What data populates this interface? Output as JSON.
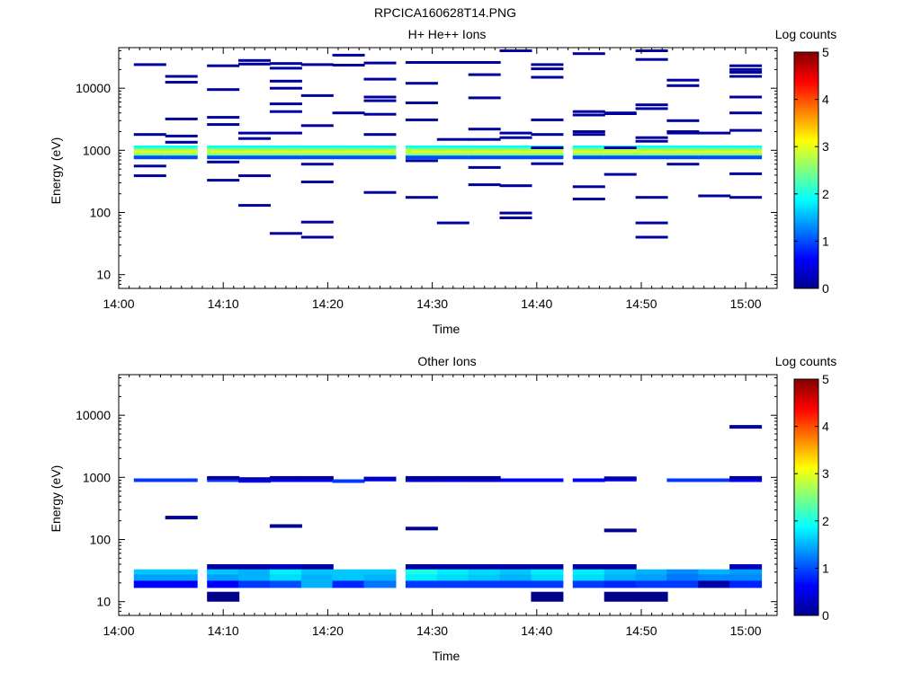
{
  "figure_title": "RPCICA160628T14.PNG",
  "colorbar": {
    "label": "Log counts",
    "min": 0,
    "max": 5,
    "ticks": [
      "0",
      "1",
      "2",
      "3",
      "4",
      "5"
    ]
  },
  "chart_data": [
    {
      "type": "heatmap",
      "title": "H+ He++ Ions",
      "xlabel": "Time",
      "ylabel": "Energy (eV)",
      "y_scale": "log",
      "xlim": [
        "14:00",
        "15:03"
      ],
      "ylim": [
        6,
        45000
      ],
      "x_ticks": [
        "14:00",
        "14:10",
        "14:20",
        "14:30",
        "14:40",
        "14:50",
        "15:00"
      ],
      "y_ticks": [
        "10",
        "100",
        "1000",
        "10000"
      ],
      "grid": false,
      "time_bins": [
        "14:03",
        "14:06",
        "14:10",
        "14:13",
        "14:16",
        "14:19",
        "14:22",
        "14:25",
        "14:29",
        "14:32",
        "14:35",
        "14:38",
        "14:41",
        "14:45",
        "14:48",
        "14:51",
        "14:54",
        "14:57",
        "15:00"
      ],
      "band": {
        "energies": [
          1120,
          1040,
          980,
          920,
          870,
          820,
          770
        ],
        "values": [
          1.9,
          2.3,
          2.7,
          3.0,
          2.8,
          2.4,
          1.0
        ]
      },
      "sparse": [
        [
          0,
          [
            24000,
            1800,
            560,
            390
          ]
        ],
        [
          1,
          [
            15500,
            12500,
            3200,
            1700,
            1350
          ]
        ],
        [
          2,
          [
            23000,
            9500,
            3400,
            2600,
            650,
            330
          ]
        ],
        [
          3,
          [
            28000,
            24500,
            1900,
            1550,
            390,
            130
          ]
        ],
        [
          4,
          [
            25000,
            21000,
            13000,
            10000,
            5600,
            4200,
            1900,
            46
          ]
        ],
        [
          5,
          [
            24000,
            7600,
            2500,
            600,
            310,
            70,
            40
          ]
        ],
        [
          6,
          [
            34000,
            23500,
            4000
          ]
        ],
        [
          7,
          [
            25500,
            14000,
            7200,
            6300,
            3800,
            1800,
            210
          ]
        ],
        [
          8,
          [
            26000,
            12000,
            5800,
            3100,
            680,
            175
          ]
        ],
        [
          9,
          [
            26000,
            1500,
            68
          ]
        ],
        [
          10,
          [
            26000,
            16500,
            7000,
            2200,
            1500,
            530,
            280
          ]
        ],
        [
          11,
          [
            40000,
            1900,
            1600,
            270,
            98,
            82
          ]
        ],
        [
          12,
          [
            24000,
            20500,
            15000,
            3100,
            1800,
            1100,
            610
          ]
        ],
        [
          13,
          [
            36000,
            4200,
            3700,
            2000,
            1800,
            260,
            165
          ]
        ],
        [
          14,
          [
            4000,
            3900,
            1100,
            410
          ]
        ],
        [
          15,
          [
            40000,
            29000,
            5400,
            4700,
            1600,
            1400,
            175,
            68,
            40
          ]
        ],
        [
          16,
          [
            13500,
            11000,
            3000,
            2000,
            1900,
            600
          ]
        ],
        [
          17,
          [
            1900,
            185
          ]
        ],
        [
          18,
          [
            23000,
            20000,
            18000,
            15500,
            7200,
            4000,
            2100,
            420,
            175
          ]
        ]
      ]
    },
    {
      "type": "heatmap",
      "title": "Other Ions",
      "xlabel": "Time",
      "ylabel": "Energy (eV)",
      "y_scale": "log",
      "xlim": [
        "14:00",
        "15:03"
      ],
      "ylim": [
        6,
        45000
      ],
      "x_ticks": [
        "14:00",
        "14:10",
        "14:20",
        "14:30",
        "14:40",
        "14:50",
        "15:00"
      ],
      "y_ticks": [
        "10",
        "100",
        "1000",
        "10000"
      ],
      "grid": false,
      "time_bins": [
        "14:03",
        "14:06",
        "14:10",
        "14:13",
        "14:16",
        "14:19",
        "14:22",
        "14:25",
        "14:29",
        "14:32",
        "14:35",
        "14:38",
        "14:41",
        "14:45",
        "14:48",
        "14:51",
        "14:54",
        "14:57",
        "15:00"
      ],
      "low_band": {
        "energies": [
          35,
          29,
          24,
          19
        ],
        "rows": [
          [
            null,
            null,
            0.2,
            0.2,
            0.3,
            0.2,
            null,
            null,
            0.2,
            0.2,
            0.2,
            0.2,
            0.2,
            0.2,
            0.2,
            null,
            null,
            null,
            0.3
          ],
          [
            1.6,
            1.6,
            1.6,
            1.5,
            1.8,
            1.6,
            1.6,
            1.6,
            2.0,
            1.8,
            1.7,
            1.6,
            1.8,
            1.8,
            1.6,
            1.5,
            1.3,
            1.5,
            1.4
          ],
          [
            1.4,
            1.4,
            1.4,
            1.5,
            1.7,
            1.5,
            1.6,
            1.5,
            1.8,
            1.7,
            1.6,
            1.5,
            1.7,
            1.7,
            1.5,
            1.4,
            1.2,
            1.3,
            1.3
          ],
          [
            0.6,
            0.6,
            0.6,
            0.9,
            1.0,
            1.5,
            0.8,
            1.2,
            0.9,
            0.9,
            0.9,
            0.9,
            0.9,
            0.9,
            0.8,
            0.9,
            0.9,
            0.2,
            0.8
          ]
        ]
      },
      "cells": [
        [
          2,
          12,
          0.05
        ],
        [
          12,
          12,
          0.05
        ],
        [
          14,
          12,
          0.05
        ],
        [
          15,
          12,
          0.05
        ],
        [
          0,
          900,
          0.9
        ],
        [
          1,
          900,
          0.9
        ],
        [
          2,
          900,
          0.9
        ],
        [
          3,
          880,
          0.7
        ],
        [
          4,
          900,
          0.6
        ],
        [
          5,
          900,
          0.6
        ],
        [
          6,
          870,
          0.9
        ],
        [
          7,
          920,
          0.7
        ],
        [
          8,
          900,
          0.4
        ],
        [
          9,
          900,
          0.5
        ],
        [
          10,
          900,
          0.4
        ],
        [
          11,
          900,
          0.6
        ],
        [
          12,
          900,
          0.6
        ],
        [
          13,
          900,
          0.6
        ],
        [
          14,
          920,
          0.6
        ],
        [
          16,
          900,
          0.9
        ],
        [
          17,
          900,
          0.9
        ],
        [
          18,
          900,
          0.6
        ],
        [
          2,
          980,
          0.1
        ],
        [
          3,
          940,
          0.3
        ],
        [
          4,
          980,
          0.1
        ],
        [
          5,
          980,
          0.1
        ],
        [
          7,
          960,
          0.3
        ],
        [
          8,
          980,
          0.1
        ],
        [
          9,
          980,
          0.1
        ],
        [
          10,
          980,
          0.1
        ],
        [
          14,
          970,
          0.2
        ],
        [
          18,
          980,
          0.1
        ],
        [
          1,
          225,
          0.1
        ],
        [
          4,
          165,
          0.1
        ],
        [
          8,
          150,
          0.1
        ],
        [
          14,
          140,
          0.1
        ],
        [
          18,
          6500,
          0.2
        ]
      ]
    }
  ]
}
